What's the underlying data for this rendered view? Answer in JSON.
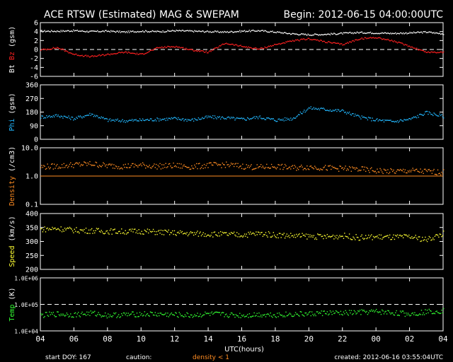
{
  "title": "ACE RTSW (Estimated) MAG & SWEPAM",
  "begin": "Begin: 2012-06-15 04:00:00UTC",
  "xlabel": "UTC(hours)",
  "xticks": [
    "04",
    "06",
    "08",
    "10",
    "12",
    "14",
    "16",
    "18",
    "20",
    "22",
    "00",
    "02",
    "04"
  ],
  "footer": {
    "start_doy": "start DOY: 167",
    "caution_label": "caution:",
    "caution_value": "density < 1",
    "created": "created: 2012-06-16 03:55:04UTC"
  },
  "colors": {
    "bt": "#ffffff",
    "bz": "#ff2020",
    "phi": "#22b8ff",
    "density": "#ff8c22",
    "speed": "#ffff33",
    "temp": "#33ff33",
    "caution": "#ff8c22"
  },
  "chart_data": [
    {
      "type": "scatter",
      "name": "mag",
      "ylabel": "Bt Bz (gsm)",
      "ylabel_parts": [
        {
          "text": "Bt",
          "color": "#ffffff"
        },
        {
          "text": "Bz",
          "color": "#ff2020"
        },
        {
          "text": "(gsm)",
          "color": "#ffffff"
        }
      ],
      "ylim": [
        -6,
        6
      ],
      "yticks": [
        "-6",
        "-4",
        "-2",
        "0",
        "2",
        "4",
        "6"
      ],
      "hline": 0,
      "series": [
        {
          "name": "Bt",
          "x": [
            0,
            1,
            2,
            3,
            4,
            5,
            6,
            7,
            8,
            9,
            10,
            11,
            12,
            13,
            14,
            15,
            16,
            17,
            18,
            19,
            20,
            21,
            22,
            23,
            24
          ],
          "values": [
            4.2,
            4.2,
            4.3,
            4.1,
            4.2,
            4.0,
            4.2,
            4.1,
            4.3,
            4.2,
            4.1,
            4.0,
            4.2,
            4.3,
            4.0,
            3.6,
            3.4,
            3.5,
            3.7,
            3.9,
            3.8,
            3.7,
            3.8,
            4.0,
            3.6
          ]
        },
        {
          "name": "Bz",
          "x": [
            0,
            1,
            2,
            3,
            4,
            5,
            6,
            7,
            8,
            9,
            10,
            11,
            12,
            13,
            14,
            15,
            16,
            17,
            18,
            19,
            20,
            21,
            22,
            23,
            24
          ],
          "values": [
            0.0,
            0.5,
            -1.0,
            -1.5,
            -1.0,
            -0.5,
            -1.0,
            0.5,
            0.8,
            0.0,
            -0.5,
            1.5,
            0.8,
            0.2,
            1.2,
            2.0,
            2.5,
            1.8,
            1.2,
            2.5,
            2.8,
            2.0,
            0.8,
            -0.5,
            -0.5
          ]
        }
      ]
    },
    {
      "type": "scatter",
      "name": "phi",
      "ylabel": "Phi (gsm)",
      "ylabel_parts": [
        {
          "text": "Phi",
          "color": "#22b8ff"
        },
        {
          "text": "(gsm)",
          "color": "#ffffff"
        }
      ],
      "ylim": [
        0,
        360
      ],
      "yticks": [
        "0",
        "90",
        "180",
        "270",
        "360"
      ],
      "series": [
        {
          "name": "Phi",
          "x": [
            0,
            1,
            2,
            3,
            4,
            5,
            6,
            7,
            8,
            9,
            10,
            11,
            12,
            13,
            14,
            15,
            16,
            17,
            18,
            19,
            20,
            21,
            22,
            23,
            24
          ],
          "values": [
            150,
            160,
            140,
            170,
            130,
            125,
            130,
            135,
            140,
            130,
            150,
            145,
            135,
            150,
            130,
            140,
            210,
            200,
            190,
            150,
            130,
            120,
            135,
            180,
            155
          ]
        }
      ]
    },
    {
      "type": "scatter",
      "name": "density",
      "ylabel": "Density (/cm3)",
      "ylabel_parts": [
        {
          "text": "Density",
          "color": "#ff8c22"
        },
        {
          "text": "(/cm3)",
          "color": "#ffffff"
        }
      ],
      "yscale": "log",
      "ylim": [
        0.1,
        10
      ],
      "yticks": [
        "0.1",
        "1.0",
        "10.0"
      ],
      "hline": 1,
      "series": [
        {
          "name": "Density",
          "x": [
            0,
            1,
            2,
            3,
            4,
            5,
            6,
            7,
            8,
            9,
            10,
            11,
            12,
            13,
            14,
            15,
            16,
            17,
            18,
            19,
            20,
            21,
            22,
            23,
            24
          ],
          "values": [
            2.2,
            2.3,
            2.6,
            2.8,
            2.4,
            2.3,
            2.5,
            2.3,
            2.4,
            2.2,
            2.5,
            2.6,
            2.3,
            2.1,
            2.3,
            2.0,
            2.2,
            2.0,
            1.9,
            1.8,
            1.6,
            1.5,
            1.6,
            1.5,
            1.4
          ]
        }
      ]
    },
    {
      "type": "scatter",
      "name": "speed",
      "ylabel": "Speed (km/s)",
      "ylabel_parts": [
        {
          "text": "Speed",
          "color": "#ffff33"
        },
        {
          "text": "(km/s)",
          "color": "#ffffff"
        }
      ],
      "ylim": [
        200,
        400
      ],
      "yticks": [
        "200",
        "250",
        "300",
        "350",
        "400"
      ],
      "series": [
        {
          "name": "Speed",
          "x": [
            0,
            1,
            2,
            3,
            4,
            5,
            6,
            7,
            8,
            9,
            10,
            11,
            12,
            13,
            14,
            15,
            16,
            17,
            18,
            19,
            20,
            21,
            22,
            23,
            24
          ],
          "values": [
            345,
            348,
            342,
            340,
            338,
            337,
            338,
            335,
            332,
            330,
            328,
            327,
            325,
            330,
            325,
            322,
            320,
            318,
            322,
            315,
            318,
            316,
            318,
            308,
            330
          ]
        }
      ]
    },
    {
      "type": "scatter",
      "name": "temp",
      "ylabel": "Temp (K)",
      "ylabel_parts": [
        {
          "text": "Temp",
          "color": "#33ff33"
        },
        {
          "text": "(K)",
          "color": "#ffffff"
        }
      ],
      "yscale": "log",
      "ylim": [
        10000,
        1000000
      ],
      "yticks": [
        "1.0E+04",
        "1.0E+05",
        "1.0E+06"
      ],
      "hline": 100000,
      "series": [
        {
          "name": "Temp",
          "x": [
            0,
            1,
            2,
            3,
            4,
            5,
            6,
            7,
            8,
            9,
            10,
            11,
            12,
            13,
            14,
            15,
            16,
            17,
            18,
            19,
            20,
            21,
            22,
            23,
            24
          ],
          "values": [
            40000,
            45000,
            42000,
            48000,
            40000,
            42000,
            45000,
            44000,
            42000,
            40000,
            45000,
            42000,
            40000,
            43000,
            42000,
            44000,
            45000,
            50000,
            48000,
            52000,
            55000,
            50000,
            45000,
            55000,
            60000
          ]
        }
      ]
    }
  ]
}
